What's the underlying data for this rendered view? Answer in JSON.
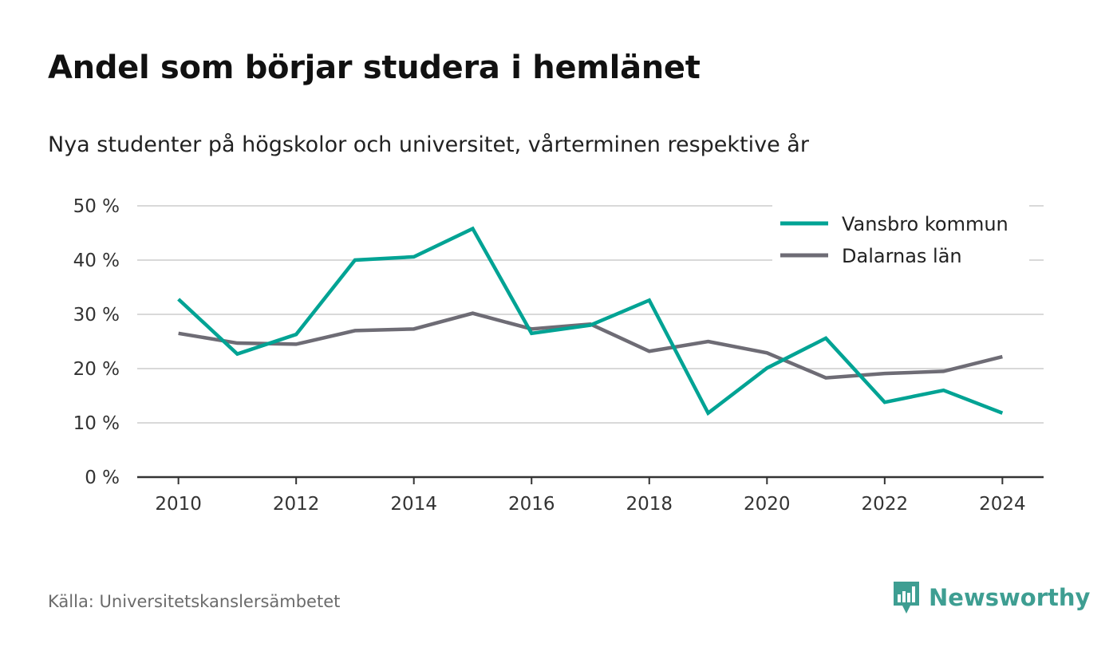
{
  "header": {
    "title": "Andel som börjar studera i hemlänet",
    "subtitle": "Nya studenter på högskolor och universitet, vårterminen respektive år"
  },
  "footer": {
    "source": "Källa: Universitetskanslersämbetet",
    "brand": "Newsworthy",
    "brand_icon": "newsworthy-logo-icon"
  },
  "colors": {
    "series_1": "#00a394",
    "series_2": "#6e6c75",
    "grid": "#d9d9d9",
    "axis": "#333333",
    "brand": "#3e9e92"
  },
  "chart_data": {
    "type": "line",
    "title": "Andel som börjar studera i hemlänet",
    "subtitle": "Nya studenter på högskolor och universitet, vårterminen respektive år",
    "xlabel": "",
    "ylabel": "",
    "x": [
      2010,
      2011,
      2012,
      2013,
      2014,
      2015,
      2016,
      2017,
      2018,
      2019,
      2020,
      2021,
      2022,
      2023,
      2024
    ],
    "xticks": [
      "2010",
      "2012",
      "2014",
      "2016",
      "2018",
      "2020",
      "2022",
      "2024"
    ],
    "xlim": [
      2009.3,
      2024.7
    ],
    "yticks": [
      "0 %",
      "10 %",
      "20 %",
      "30 %",
      "40 %",
      "50 %"
    ],
    "ylim": [
      0,
      50
    ],
    "grid": true,
    "legend_position": "top-right",
    "series": [
      {
        "name": "Vansbro kommun",
        "color": "#00a394",
        "values": [
          32.8,
          22.7,
          26.3,
          40.0,
          40.6,
          45.8,
          26.5,
          28.0,
          32.6,
          11.8,
          20.1,
          25.6,
          13.8,
          16.0,
          11.8
        ]
      },
      {
        "name": "Dalarnas län",
        "color": "#6e6c75",
        "values": [
          26.5,
          24.7,
          24.5,
          27.0,
          27.3,
          30.2,
          27.3,
          28.2,
          23.2,
          25.0,
          22.9,
          18.3,
          19.1,
          19.5,
          22.2
        ]
      }
    ]
  }
}
